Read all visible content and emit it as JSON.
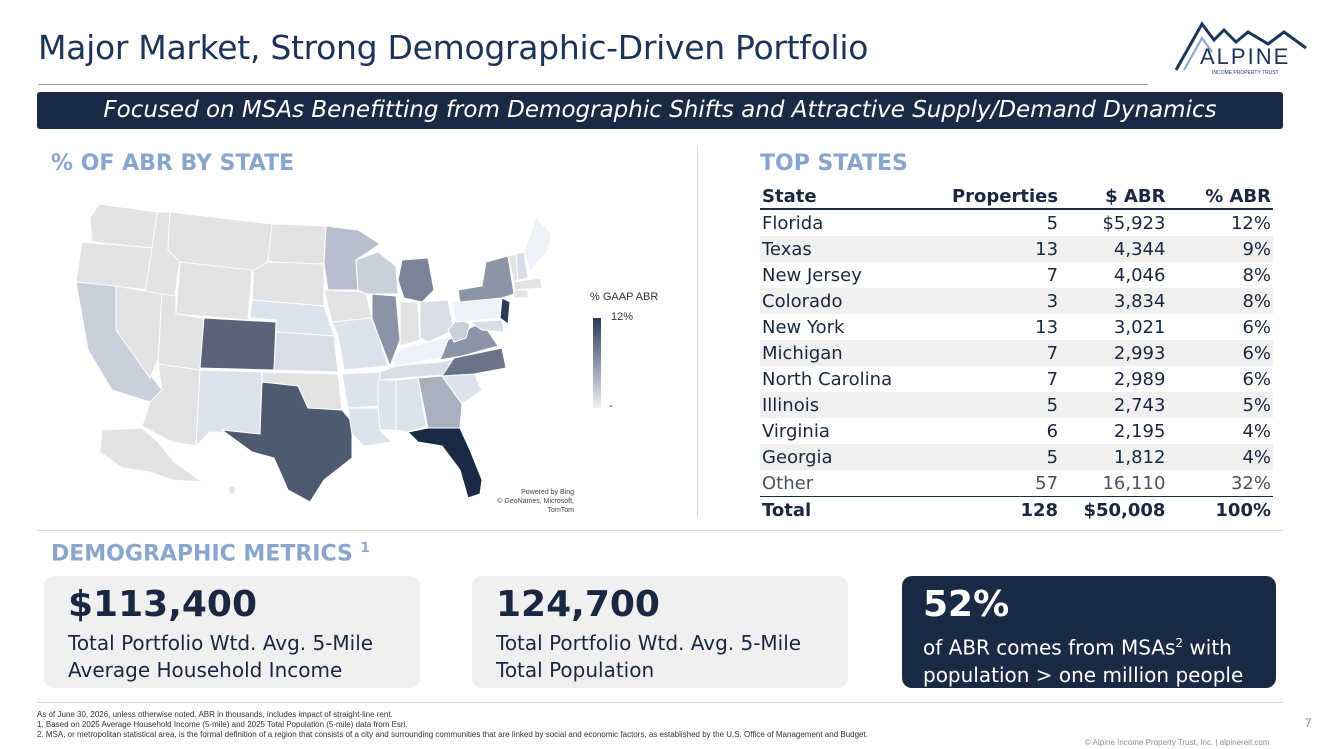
{
  "header": {
    "title": "Major Market, Strong Demographic-Driven Portfolio",
    "logo_text": "ALPINE",
    "logo_subtext": "INCOME PROPERTY TRUST"
  },
  "banner": {
    "text": "Focused on MSAs Benefitting from Demographic Shifts and Attractive Supply/Demand Dynamics"
  },
  "map_section": {
    "title": "% OF ABR BY STATE",
    "legend_title": "% GAAP ABR",
    "legend_max": "12%",
    "legend_min": "-",
    "credit_line1": "Powered by Bing",
    "credit_line2": "© GeoNames, Microsoft, TomTom",
    "colors": {
      "high": "#1b2a44",
      "low": "#eef2f8",
      "none": "#e3e3e3"
    }
  },
  "top_states": {
    "title": "TOP STATES",
    "columns": [
      "State",
      "Properties",
      "$ ABR",
      "% ABR"
    ],
    "rows": [
      {
        "state": "Florida",
        "properties": "5",
        "abr": "$5,923",
        "pct": "12%"
      },
      {
        "state": "Texas",
        "properties": "13",
        "abr": "4,344",
        "pct": "9%"
      },
      {
        "state": "New Jersey",
        "properties": "7",
        "abr": "4,046",
        "pct": "8%"
      },
      {
        "state": "Colorado",
        "properties": "3",
        "abr": "3,834",
        "pct": "8%"
      },
      {
        "state": "New York",
        "properties": "13",
        "abr": "3,021",
        "pct": "6%"
      },
      {
        "state": "Michigan",
        "properties": "7",
        "abr": "2,993",
        "pct": "6%"
      },
      {
        "state": "North Carolina",
        "properties": "7",
        "abr": "2,989",
        "pct": "6%"
      },
      {
        "state": "Illinois",
        "properties": "5",
        "abr": "2,743",
        "pct": "5%"
      },
      {
        "state": "Virginia",
        "properties": "6",
        "abr": "2,195",
        "pct": "4%"
      },
      {
        "state": "Georgia",
        "properties": "5",
        "abr": "1,812",
        "pct": "4%"
      },
      {
        "state": "Other",
        "properties": "57",
        "abr": "16,110",
        "pct": "32%"
      }
    ],
    "total": {
      "state": "Total",
      "properties": "128",
      "abr": "$50,008",
      "pct": "100%"
    }
  },
  "demographics": {
    "title": "DEMOGRAPHIC METRICS",
    "title_sup": "1",
    "cards": [
      {
        "value": "$113,400",
        "line1": "Total Portfolio Wtd. Avg. 5-Mile",
        "line2": "Average Household Income"
      },
      {
        "value": "124,700",
        "line1": "Total Portfolio Wtd. Avg. 5-Mile",
        "line2": "Total Population"
      },
      {
        "value": "52%",
        "line1_a": "of ABR comes from MSAs",
        "line1_sup": "2",
        "line1_b": " with",
        "line2": "population > one million people"
      }
    ]
  },
  "footer": {
    "note": "As of June 30, 2026, unless otherwise noted. ABR in thousands, includes impact of straight-line rent.",
    "fn1": "1.    Based on 2025 Average Household Income (5-mile) and 2025 Total Population (5-mile) data from Esri.",
    "fn2": "2.    MSA, or metropolitan statistical area, is the formal definition of a region that consists of a city and surrounding communities that are linked by social and economic factors, as established by the U.S. Office of Management and Budget.",
    "page": "7",
    "copyright": "© Alpine Income Property Trust, Inc.  |  alpinereit.com"
  }
}
